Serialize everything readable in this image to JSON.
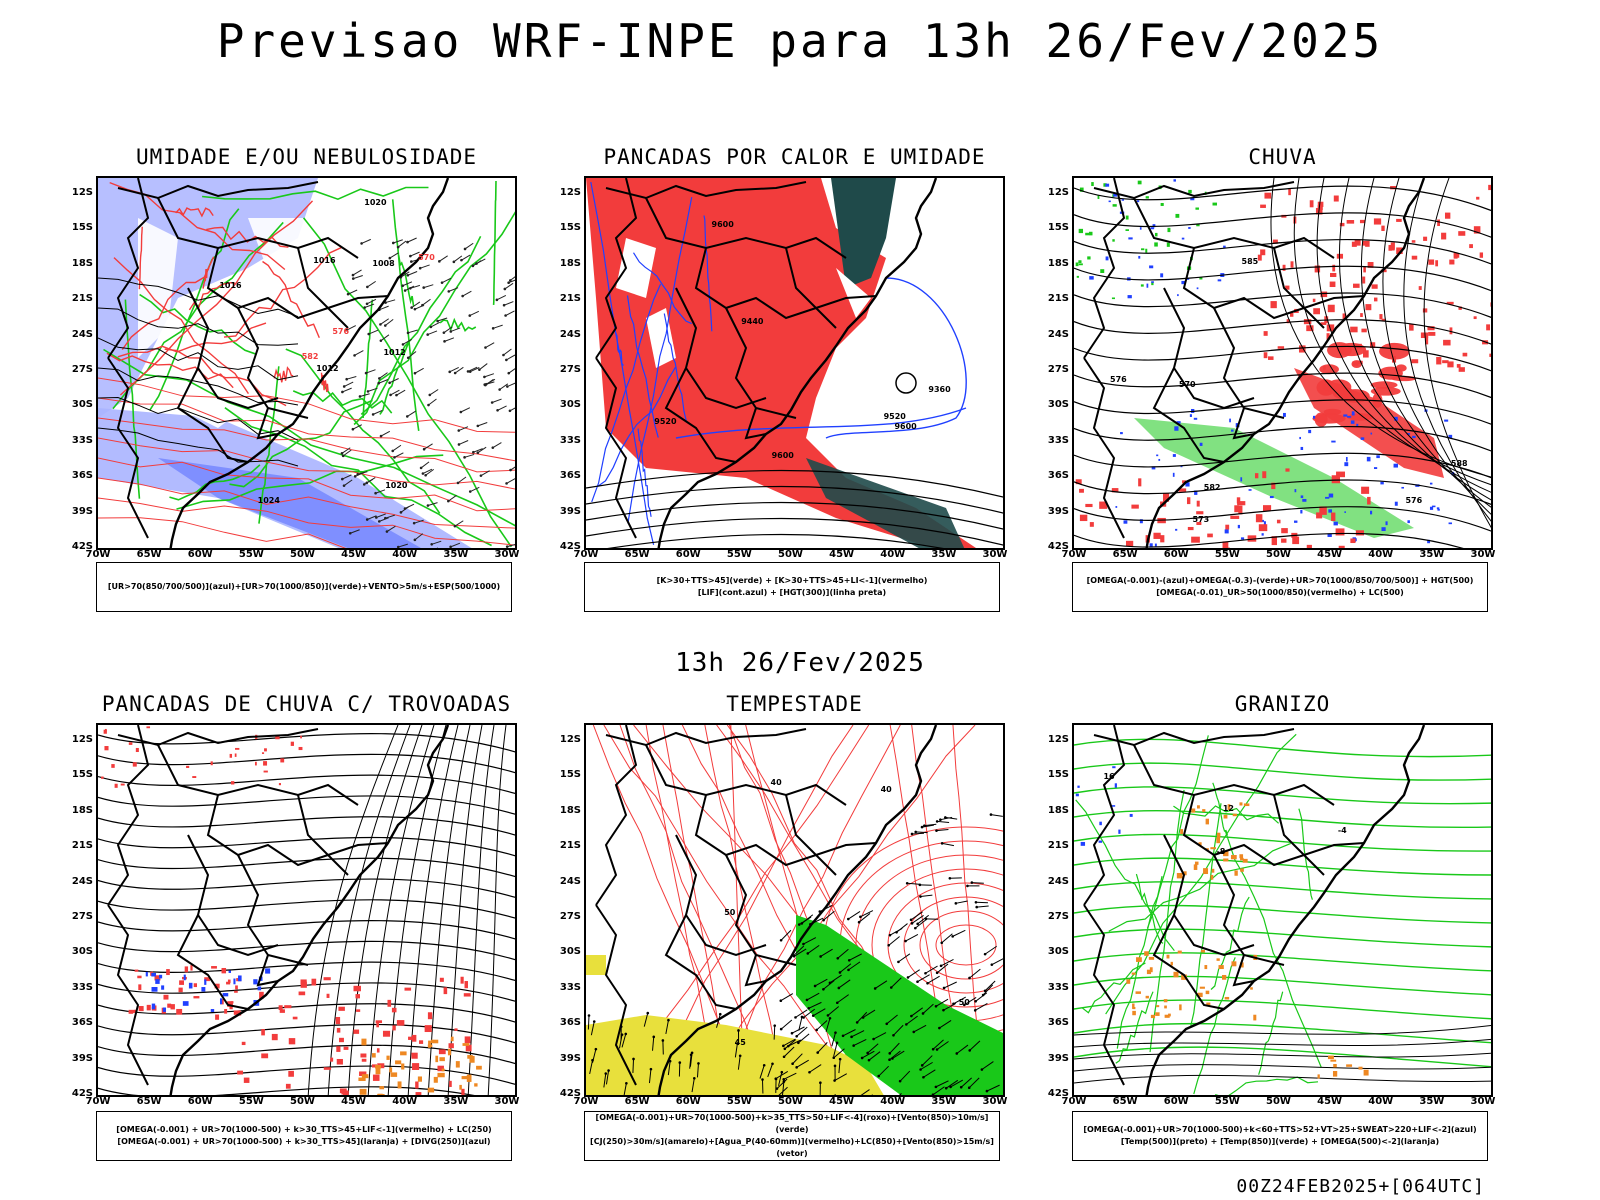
{
  "title": "Previsao WRF-INPE  para 13h 26/Fev/2025",
  "mid_label": "13h 26/Fev/2025",
  "footer": "00Z24FEB2025+[064UTC]",
  "lat_labels": [
    "12S",
    "15S",
    "18S",
    "21S",
    "24S",
    "27S",
    "30S",
    "33S",
    "36S",
    "39S",
    "42S"
  ],
  "lon_labels": [
    "70W",
    "65W",
    "60W",
    "55W",
    "50W",
    "45W",
    "40W",
    "35W",
    "30W"
  ],
  "colors": {
    "red": "#f23c3c",
    "green": "#19c819",
    "blue": "#2040ff",
    "lavender": "#aab4ff",
    "darkteal": "#1f4a4a",
    "yellow": "#e8e03c",
    "orange": "#ee8822"
  },
  "panels": [
    {
      "title": "UMIDADE E/OU NEBULOSIDADE",
      "legend": [
        "[UR>70(850/700/500)](azul)+[UR>70(1000/850)](verde)+VENTO>5m/s+ESP(500/1000)"
      ],
      "labels": [
        "1016",
        "1012",
        "1008",
        "1016",
        "1020",
        "1012",
        "570",
        "576",
        "582",
        "1024",
        "1020"
      ]
    },
    {
      "title": "PANCADAS POR CALOR E UMIDADE",
      "legend": [
        "[K>30+TTS>45](verde) + [K>30+TTS>45+LI<-1](vermelho)",
        "[LIF](cont.azul) + [HGT(300)](linha preta)"
      ],
      "labels": [
        "9600",
        "9520",
        "9440",
        "9360",
        "9600",
        "9600",
        "9520"
      ]
    },
    {
      "title": "CHUVA",
      "legend": [
        "[OMEGA(-0.001)-(azul)+OMEGA(-0.3)-(verde)+UR>70(1000/850/700/500)] + HGT(500)",
        "[OMEGA(-0.01)_UR>50(1000/850)(vermelho) + LC(500)"
      ],
      "labels": [
        "582",
        "588",
        "576",
        "573",
        "570",
        "576",
        "585"
      ]
    },
    {
      "title": "PANCADAS DE CHUVA C/ TROVOADAS",
      "legend": [
        "[OMEGA(-0.001) + UR>70(1000-500) + k>30_TTS>45+LIF<-1](vermelho) + LC(250)",
        "[OMEGA(-0.001) + UR>70(1000-500) + k>30_TTS>45](laranja) + [DIVG(250)](azul)"
      ],
      "labels": []
    },
    {
      "title": "TEMPESTADE",
      "legend": [
        "[OMEGA(-0.001)+UR>70(1000-500)+k>35_TTS>50+LIF<-4](roxo)+[Vento(850)>10m/s](verde)",
        "[CJ(250)>30m/s](amarelo)+[Agua_P(40-60mm)](vermelho)+LC(850)+[Vento(850)>15m/s](vetor)"
      ],
      "labels": [
        "50",
        "40",
        "45",
        "50",
        "40"
      ]
    },
    {
      "title": "GRANIZO",
      "legend": [
        "[OMEGA(-0.001)+UR>70(1000-500)+k<60+TTS>52+VT>25+SWEAT>220+LIF<-2](azul)",
        "[Temp(500)](preto) + [Temp(850)](verde) + [OMEGA(500)<-2](laranja)"
      ],
      "labels": [
        "-8",
        "-4",
        "16",
        "12"
      ]
    }
  ]
}
